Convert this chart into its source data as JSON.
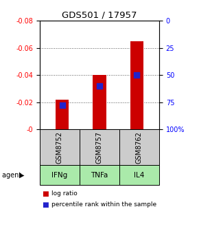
{
  "title": "GDS501 / 17957",
  "samples": [
    "GSM8752",
    "GSM8757",
    "GSM8762"
  ],
  "agents": [
    "IFNg",
    "TNFa",
    "IL4"
  ],
  "log_ratios": [
    -0.022,
    -0.04,
    -0.065
  ],
  "percentile_ranks": [
    78,
    60,
    50
  ],
  "ylim_left": [
    -0.08,
    0.0
  ],
  "ylim_right": [
    0,
    100
  ],
  "yticks_left": [
    0.0,
    -0.02,
    -0.04,
    -0.06,
    -0.08
  ],
  "yticks_right": [
    0,
    25,
    50,
    75,
    100
  ],
  "ytick_labels_left": [
    "-0",
    "-0.02",
    "-0.04",
    "-0.06",
    "-0.08"
  ],
  "ytick_labels_right": [
    "0",
    "25",
    "50",
    "75",
    "100%"
  ],
  "bar_color": "#cc0000",
  "dot_color": "#2222cc",
  "sample_box_color": "#cccccc",
  "agent_box_color": "#aaeaaa",
  "background_color": "#ffffff",
  "grid_color": "#555555"
}
